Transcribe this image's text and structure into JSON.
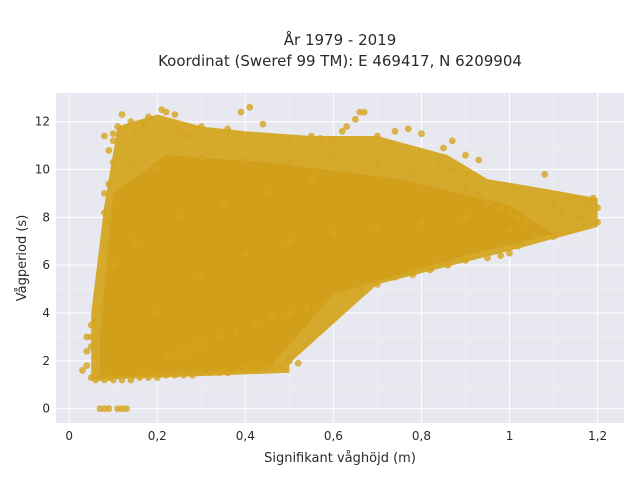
{
  "chart_data": {
    "type": "scatter",
    "title_lines": [
      "År 1979 - 2019",
      "Koordinat (Sweref 99 TM): E 469417, N 6209904"
    ],
    "xlabel": "Signifikant våghöjd (m)",
    "ylabel": "Vågperiod (s)",
    "xlim": [
      -0.03,
      1.26
    ],
    "ylim": [
      -0.6,
      13.2
    ],
    "x_ticks": [
      0,
      0.2,
      0.4,
      0.6,
      0.8,
      1,
      1.2
    ],
    "x_tick_labels": [
      "0",
      "0,2",
      "0,4",
      "0,6",
      "0,8",
      "1",
      "1,2"
    ],
    "y_ticks": [
      0,
      2,
      4,
      6,
      8,
      10,
      12
    ],
    "y_tick_labels": [
      "0",
      "2",
      "4",
      "6",
      "8",
      "10",
      "12"
    ],
    "grid": true,
    "marker_color": "#d4a520",
    "background_color": "#e8e8f0",
    "series": [
      {
        "points": [
          [
            0.07,
            0.0
          ],
          [
            0.08,
            0.0
          ],
          [
            0.09,
            0.0
          ],
          [
            0.11,
            0.0
          ],
          [
            0.12,
            0.0
          ],
          [
            0.13,
            0.0
          ],
          [
            0.05,
            1.3
          ],
          [
            0.06,
            1.2
          ],
          [
            0.07,
            1.3
          ],
          [
            0.08,
            1.2
          ],
          [
            0.09,
            1.3
          ],
          [
            0.1,
            1.2
          ],
          [
            0.12,
            1.2
          ],
          [
            0.14,
            1.2
          ],
          [
            0.16,
            1.3
          ],
          [
            0.18,
            1.3
          ],
          [
            0.2,
            1.3
          ],
          [
            0.22,
            1.4
          ],
          [
            0.24,
            1.4
          ],
          [
            0.26,
            1.4
          ],
          [
            0.28,
            1.4
          ],
          [
            0.3,
            1.5
          ],
          [
            0.32,
            1.5
          ],
          [
            0.34,
            1.5
          ],
          [
            0.36,
            1.5
          ],
          [
            0.38,
            1.6
          ],
          [
            0.4,
            1.6
          ],
          [
            0.42,
            1.6
          ],
          [
            0.44,
            1.7
          ],
          [
            0.46,
            1.7
          ],
          [
            0.48,
            1.8
          ],
          [
            0.5,
            2.0
          ],
          [
            0.52,
            1.9
          ],
          [
            0.45,
            1.8
          ],
          [
            0.4,
            1.7
          ],
          [
            0.35,
            1.6
          ],
          [
            0.3,
            1.6
          ],
          [
            0.25,
            1.5
          ],
          [
            0.05,
            3.5
          ],
          [
            0.06,
            3.7
          ],
          [
            0.07,
            4.2
          ],
          [
            0.05,
            2.6
          ],
          [
            0.06,
            2.2
          ],
          [
            0.08,
            9.0
          ],
          [
            0.09,
            9.4
          ],
          [
            0.08,
            8.2
          ],
          [
            0.09,
            7.8
          ],
          [
            0.08,
            11.4
          ],
          [
            0.09,
            10.8
          ],
          [
            0.1,
            11.2
          ],
          [
            0.1,
            11.5
          ],
          [
            0.11,
            11.8
          ],
          [
            0.12,
            12.3
          ],
          [
            0.14,
            12.0
          ],
          [
            0.15,
            11.5
          ],
          [
            0.17,
            11.9
          ],
          [
            0.18,
            12.2
          ],
          [
            0.21,
            12.5
          ],
          [
            0.22,
            12.4
          ],
          [
            0.24,
            12.3
          ],
          [
            0.25,
            11.6
          ],
          [
            0.27,
            11.4
          ],
          [
            0.3,
            11.8
          ],
          [
            0.33,
            11.5
          ],
          [
            0.36,
            11.7
          ],
          [
            0.39,
            12.4
          ],
          [
            0.41,
            12.6
          ],
          [
            0.44,
            11.9
          ],
          [
            0.5,
            11.2
          ],
          [
            0.55,
            11.4
          ],
          [
            0.57,
            11.3
          ],
          [
            0.6,
            11.2
          ],
          [
            0.62,
            11.6
          ],
          [
            0.63,
            11.8
          ],
          [
            0.65,
            12.1
          ],
          [
            0.66,
            12.4
          ],
          [
            0.67,
            12.4
          ],
          [
            0.7,
            11.4
          ],
          [
            0.74,
            11.6
          ],
          [
            0.77,
            11.7
          ],
          [
            0.8,
            11.5
          ],
          [
            0.85,
            10.9
          ],
          [
            0.87,
            11.2
          ],
          [
            0.9,
            10.6
          ],
          [
            0.93,
            10.4
          ],
          [
            0.1,
            10.3
          ],
          [
            0.14,
            10.2
          ],
          [
            0.2,
            10.0
          ],
          [
            0.3,
            10.5
          ],
          [
            0.4,
            10.4
          ],
          [
            0.5,
            10.3
          ],
          [
            0.6,
            10.5
          ],
          [
            0.7,
            10.2
          ],
          [
            0.75,
            10.0
          ],
          [
            0.78,
            9.9
          ],
          [
            0.84,
            10.2
          ],
          [
            0.87,
            10.0
          ],
          [
            0.9,
            9.8
          ],
          [
            0.9,
            9.2
          ],
          [
            0.93,
            9.0
          ],
          [
            0.95,
            8.6
          ],
          [
            0.98,
            8.4
          ],
          [
            1.0,
            8.2
          ],
          [
            1.02,
            8.0
          ],
          [
            1.04,
            7.8
          ],
          [
            1.06,
            8.4
          ],
          [
            1.08,
            9.8
          ],
          [
            1.1,
            8.6
          ],
          [
            1.12,
            8.2
          ],
          [
            1.14,
            8.8
          ],
          [
            1.16,
            8.0
          ],
          [
            1.18,
            8.6
          ],
          [
            1.19,
            8.8
          ],
          [
            1.2,
            8.4
          ],
          [
            1.2,
            7.8
          ],
          [
            1.17,
            7.6
          ],
          [
            1.13,
            7.4
          ],
          [
            1.1,
            7.2
          ],
          [
            1.06,
            7.2
          ],
          [
            1.02,
            6.8
          ],
          [
            1.0,
            6.5
          ],
          [
            0.98,
            6.4
          ],
          [
            0.95,
            6.3
          ],
          [
            0.9,
            6.2
          ],
          [
            0.86,
            6.0
          ],
          [
            0.82,
            5.8
          ],
          [
            0.78,
            5.6
          ],
          [
            0.74,
            5.5
          ],
          [
            0.7,
            5.2
          ],
          [
            0.66,
            5.0
          ],
          [
            0.62,
            4.8
          ],
          [
            0.58,
            4.5
          ],
          [
            0.54,
            4.2
          ],
          [
            0.5,
            4.0
          ],
          [
            0.46,
            3.8
          ],
          [
            0.42,
            3.5
          ],
          [
            0.38,
            3.2
          ],
          [
            0.34,
            3.0
          ],
          [
            0.3,
            2.7
          ],
          [
            0.26,
            2.4
          ],
          [
            0.22,
            2.2
          ],
          [
            0.03,
            1.6
          ],
          [
            0.04,
            1.8
          ],
          [
            0.04,
            2.4
          ],
          [
            0.04,
            3.0
          ],
          [
            0.05,
            3.0
          ],
          [
            0.2,
            4.0
          ],
          [
            0.3,
            5.5
          ],
          [
            0.4,
            6.5
          ],
          [
            0.5,
            7.0
          ],
          [
            0.6,
            7.3
          ],
          [
            0.7,
            7.6
          ],
          [
            0.8,
            7.8
          ],
          [
            0.9,
            8.0
          ],
          [
            1.0,
            7.5
          ],
          [
            0.55,
            9.5
          ],
          [
            0.45,
            9.0
          ],
          [
            0.35,
            8.5
          ],
          [
            0.25,
            8.0
          ],
          [
            0.15,
            7.0
          ],
          [
            0.1,
            6.0
          ]
        ]
      }
    ]
  }
}
